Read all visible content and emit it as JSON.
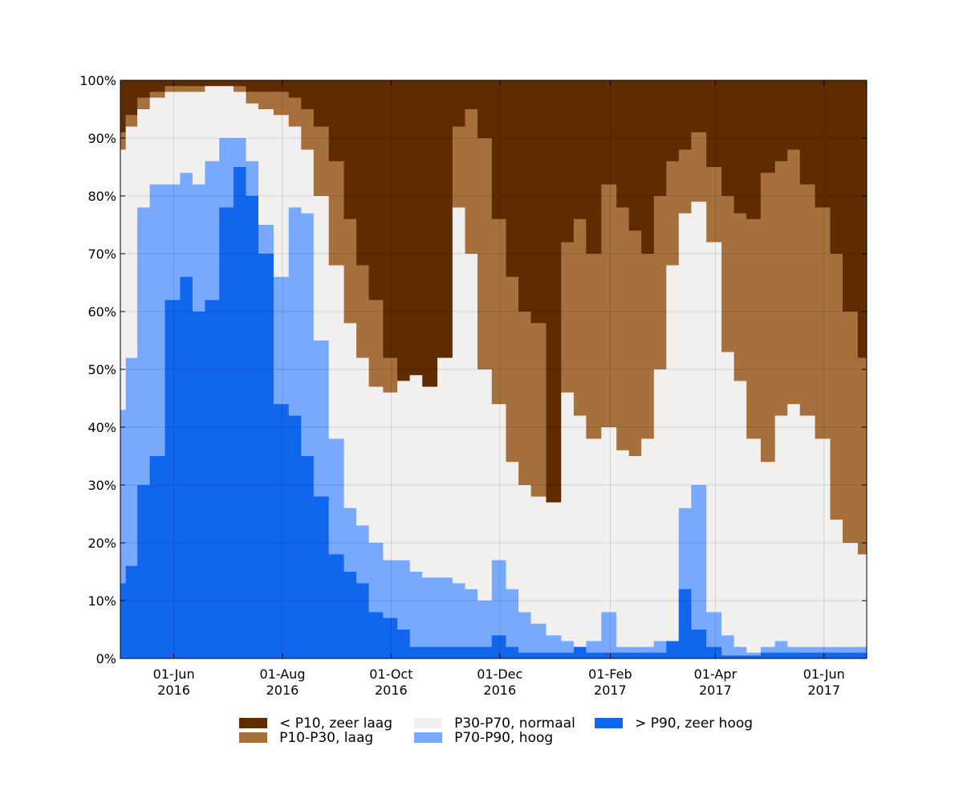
{
  "chart_data": {
    "type": "area",
    "stacked_percent": true,
    "title": "",
    "xlabel": "",
    "ylabel": "",
    "ylim": [
      0,
      100
    ],
    "xlim": [
      "2016-05-02",
      "2017-06-25"
    ],
    "grid": true,
    "legend_position": "bottom",
    "y_ticks": [
      "0%",
      "10%",
      "20%",
      "30%",
      "40%",
      "50%",
      "60%",
      "70%",
      "80%",
      "90%",
      "100%"
    ],
    "x_ticks": [
      {
        "date": "2016-06-01",
        "line1": "01-Jun",
        "line2": "2016"
      },
      {
        "date": "2016-08-01",
        "line1": "01-Aug",
        "line2": "2016"
      },
      {
        "date": "2016-10-01",
        "line1": "01-Oct",
        "line2": "2016"
      },
      {
        "date": "2016-12-01",
        "line1": "01-Dec",
        "line2": "2016"
      },
      {
        "date": "2017-02-01",
        "line1": "01-Feb",
        "line2": "2017"
      },
      {
        "date": "2017-04-01",
        "line1": "01-Apr",
        "line2": "2017"
      },
      {
        "date": "2017-06-01",
        "line1": "01-Jun",
        "line2": "2017"
      }
    ],
    "x": [
      "2016-05-02",
      "2016-05-08",
      "2016-05-15",
      "2016-05-22",
      "2016-06-01",
      "2016-06-08",
      "2016-06-15",
      "2016-06-22",
      "2016-07-01",
      "2016-07-08",
      "2016-07-15",
      "2016-07-22",
      "2016-08-01",
      "2016-08-08",
      "2016-08-15",
      "2016-08-22",
      "2016-09-01",
      "2016-09-08",
      "2016-09-15",
      "2016-09-22",
      "2016-10-01",
      "2016-10-08",
      "2016-10-15",
      "2016-10-22",
      "2016-11-01",
      "2016-11-08",
      "2016-11-15",
      "2016-11-22",
      "2016-12-01",
      "2016-12-08",
      "2016-12-15",
      "2016-12-22",
      "2017-01-01",
      "2017-01-08",
      "2017-01-15",
      "2017-01-22",
      "2017-02-01",
      "2017-02-08",
      "2017-02-15",
      "2017-02-22",
      "2017-03-01",
      "2017-03-08",
      "2017-03-15",
      "2017-03-22",
      "2017-04-01",
      "2017-04-08",
      "2017-04-15",
      "2017-04-22",
      "2017-05-01",
      "2017-05-08",
      "2017-05-15",
      "2017-05-22",
      "2017-06-01",
      "2017-06-08",
      "2017-06-15",
      "2017-06-25"
    ],
    "series": [
      {
        "name": "> P90, zeer hoog",
        "color": "#1166ee",
        "values": [
          13,
          16,
          30,
          35,
          62,
          66,
          60,
          62,
          78,
          85,
          80,
          70,
          44,
          42,
          35,
          28,
          18,
          15,
          13,
          8,
          7,
          5,
          2,
          2,
          2,
          2,
          2,
          2,
          4,
          2,
          1,
          1,
          1,
          1,
          2,
          1,
          1,
          1,
          1,
          1,
          1,
          3,
          12,
          5,
          2,
          0.5,
          0.5,
          0.5,
          1,
          1,
          1,
          1,
          1,
          1,
          1,
          1
        ]
      },
      {
        "name": "P70-P90, hoog",
        "color": "#77aaff",
        "values": [
          43,
          52,
          78,
          82,
          82,
          84,
          82,
          86,
          90,
          90,
          86,
          75,
          66,
          78,
          77,
          55,
          38,
          26,
          23,
          20,
          17,
          17,
          15,
          14,
          14,
          13,
          12,
          10,
          17,
          12,
          8,
          6,
          4,
          3,
          2,
          3,
          8,
          2,
          2,
          2,
          3,
          3,
          26,
          30,
          8,
          4,
          2,
          1,
          2,
          3,
          2,
          2,
          2,
          2,
          2,
          2
        ]
      },
      {
        "name": "P30-P70, normaal",
        "color": "#f2f0ef",
        "values": [
          88,
          92,
          95,
          97,
          98,
          98,
          98,
          99,
          99,
          98,
          96,
          95,
          94,
          92,
          88,
          80,
          68,
          58,
          52,
          47,
          46,
          48,
          49,
          47,
          52,
          78,
          70,
          50,
          44,
          34,
          30,
          28,
          27,
          46,
          42,
          38,
          40,
          36,
          35,
          38,
          50,
          68,
          77,
          79,
          72,
          53,
          48,
          38,
          34,
          42,
          44,
          42,
          38,
          24,
          20,
          18
        ]
      },
      {
        "name": "P10-P30, laag",
        "color": "#a6703c",
        "values": [
          91,
          94,
          97,
          98,
          99,
          99,
          99,
          99,
          99,
          99,
          98,
          98,
          98,
          97,
          95,
          92,
          86,
          76,
          68,
          62,
          52,
          48,
          49,
          46,
          52,
          92,
          95,
          90,
          76,
          66,
          60,
          58,
          26,
          72,
          76,
          70,
          82,
          78,
          74,
          70,
          80,
          86,
          88,
          91,
          85,
          80,
          77,
          76,
          84,
          86,
          88,
          82,
          78,
          70,
          60,
          52
        ]
      },
      {
        "name": "< P10, zeer laag",
        "color": "#5e2c00",
        "values": [
          100,
          100,
          100,
          100,
          100,
          100,
          100,
          100,
          100,
          100,
          100,
          100,
          100,
          100,
          100,
          100,
          100,
          100,
          100,
          100,
          100,
          100,
          100,
          100,
          100,
          100,
          100,
          100,
          100,
          100,
          100,
          100,
          100,
          100,
          100,
          100,
          100,
          100,
          100,
          100,
          100,
          100,
          100,
          100,
          100,
          100,
          100,
          100,
          100,
          100,
          100,
          100,
          100,
          100,
          100,
          100
        ]
      }
    ]
  },
  "legend": {
    "items": [
      {
        "label": "< P10, zeer laag",
        "color": "#5e2c00"
      },
      {
        "label": "P10-P30, laag",
        "color": "#a6703c"
      },
      {
        "label": "P30-P70, normaal",
        "color": "#f2f0ef"
      },
      {
        "label": "P70-P90, hoog",
        "color": "#77aaff"
      },
      {
        "label": "> P90, zeer hoog",
        "color": "#1166ee"
      }
    ]
  }
}
